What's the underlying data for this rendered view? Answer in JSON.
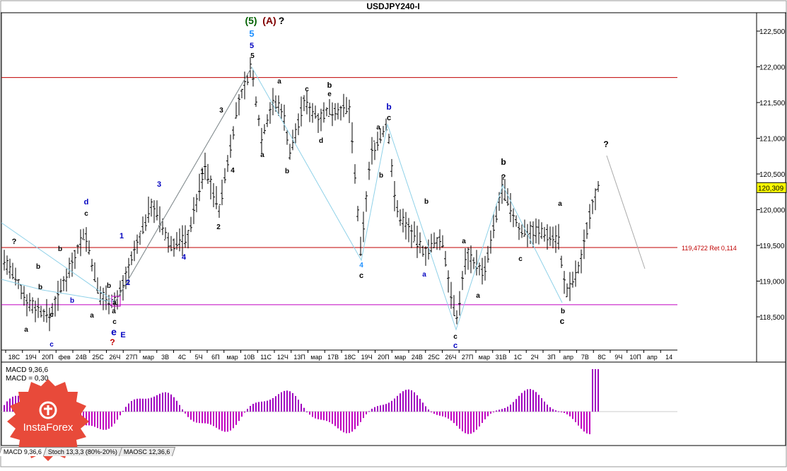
{
  "window": {
    "title": "USDJPY240-I"
  },
  "chart_data": {
    "type": "candlestick",
    "title": "USDJPY240-I",
    "symbol": "USDJPY240-I",
    "price_axis": {
      "ticks": [
        "122,500",
        "122,000",
        "121,500",
        "121,000",
        "120,500",
        "120,000",
        "119,500",
        "119,000",
        "118,500"
      ],
      "range": [
        118.05,
        122.95
      ],
      "last_price": "120,309"
    },
    "time_axis": {
      "labels": [
        "18С",
        "19Ч",
        "20П",
        "фев",
        "24В",
        "25С",
        "26Ч",
        "27П",
        "мар",
        "3В",
        "4С",
        "5Ч",
        "6П",
        "мар",
        "10В",
        "11С",
        "12Ч",
        "13П",
        "мар",
        "17В",
        "18С",
        "19Ч",
        "20П",
        "мар",
        "24В",
        "25С",
        "26Ч",
        "27П",
        "мар",
        "31В",
        "1С",
        "2Ч",
        "3П",
        "апр",
        "7В",
        "8С",
        "9Ч",
        "10П",
        "апр",
        "14"
      ]
    },
    "levels": [
      {
        "price": 121.85,
        "color": "#c00000",
        "label": ""
      },
      {
        "price": 119.47,
        "color": "#c00000",
        "label": "119,4722 Ret 0,114"
      },
      {
        "price": 118.67,
        "color": "#c000c0",
        "label": ""
      }
    ],
    "wave_labels": [
      {
        "t": "(5)",
        "c": "#006000"
      },
      {
        "t": "(A)",
        "c": "#800000"
      },
      {
        "t": "?",
        "c": "#000000"
      },
      {
        "t": "5",
        "c": "#1e90ff"
      },
      {
        "t": "5",
        "c": "#0000c0"
      },
      {
        "t": "5",
        "c": "#000000"
      },
      {
        "t": "a",
        "c": "#000000"
      },
      {
        "t": "c",
        "c": "#000000"
      },
      {
        "t": "b",
        "c": "#000000"
      },
      {
        "t": "e",
        "c": "#000000"
      },
      {
        "t": "3",
        "c": "#000000"
      },
      {
        "t": "4",
        "c": "#000000"
      },
      {
        "t": "a",
        "c": "#000000"
      },
      {
        "t": "b",
        "c": "#000000"
      },
      {
        "t": "d",
        "c": "#000000"
      },
      {
        "t": "b",
        "c": "#0000c0"
      },
      {
        "t": "c",
        "c": "#000000"
      },
      {
        "t": "a",
        "c": "#000000"
      },
      {
        "t": "b",
        "c": "#000000"
      },
      {
        "t": "1",
        "c": "#000000"
      },
      {
        "t": "2",
        "c": "#000000"
      },
      {
        "t": "3",
        "c": "#0000c0"
      },
      {
        "t": "4",
        "c": "#0000c0"
      },
      {
        "t": "1",
        "c": "#0000c0"
      },
      {
        "t": "2",
        "c": "#0000c0"
      },
      {
        "t": "d",
        "c": "#0000c0"
      },
      {
        "t": "c",
        "c": "#000000"
      },
      {
        "t": "b",
        "c": "#0000c0"
      },
      {
        "t": "a",
        "c": "#000000"
      },
      {
        "t": "b",
        "c": "#000000"
      },
      {
        "t": "a",
        "c": "#000000"
      },
      {
        "t": "c",
        "c": "#000000"
      },
      {
        "t": "c",
        "c": "#0000c0"
      },
      {
        "t": "b",
        "c": "#000000"
      },
      {
        "t": "a",
        "c": "#000000"
      },
      {
        "t": "b",
        "c": "#000000"
      },
      {
        "t": "b",
        "c": "#000000"
      },
      {
        "t": "a",
        "c": "#000000"
      },
      {
        "t": "c",
        "c": "#000000"
      },
      {
        "t": "e",
        "c": "#0000c0"
      },
      {
        "t": "E",
        "c": "#0000c0"
      },
      {
        "t": "?",
        "c": "#c00000"
      },
      {
        "t": "4",
        "c": "#1e90ff"
      },
      {
        "t": "c",
        "c": "#000000"
      },
      {
        "t": "a",
        "c": "#0000c0"
      },
      {
        "t": "b",
        "c": "#000000"
      },
      {
        "t": "a",
        "c": "#000000"
      },
      {
        "t": "c",
        "c": "#000000"
      },
      {
        "t": "c",
        "c": "#0000c0"
      },
      {
        "t": "a",
        "c": "#000000"
      },
      {
        "t": "b",
        "c": "#000000"
      },
      {
        "t": "?",
        "c": "#000000"
      },
      {
        "t": "c",
        "c": "#000000"
      },
      {
        "t": "a",
        "c": "#000000"
      },
      {
        "t": "b",
        "c": "#000000"
      },
      {
        "t": "c",
        "c": "#000000"
      },
      {
        "t": "?",
        "c": "#000000"
      },
      {
        "t": "?",
        "c": "#000000"
      }
    ],
    "macd_panel": {
      "label1": "MACD 9,36,6",
      "label2": "MACD = 0,30"
    },
    "grid": false
  },
  "tabs": [
    "MACD 9,36,6",
    "Stoch 13,3,3 (80%-20%)",
    "MAOSC 12,36,6"
  ],
  "logo": {
    "text": "InstaForex"
  },
  "colors": {
    "candle": "#000000",
    "macd_pos": "#a000c0",
    "macd_neg": "#c000c0",
    "wave_line": "#8fd1e8",
    "resistance": "#c00000",
    "support": "#c000c0",
    "logo_bg": "#e84a3a"
  }
}
